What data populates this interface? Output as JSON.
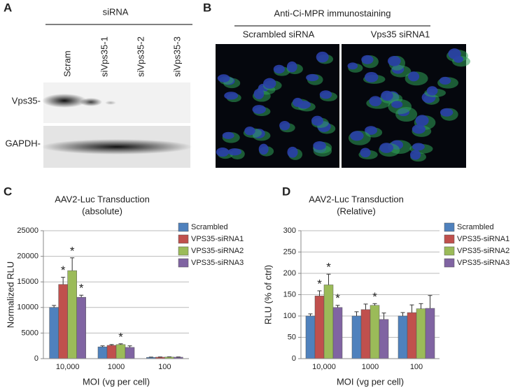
{
  "panel_a": {
    "label": "A",
    "header": "siRNA",
    "lanes": [
      "Scram",
      "siVps35-1",
      "siVps35-2",
      "siVps35-3"
    ],
    "rows": [
      "Vps35-",
      "GAPDH-"
    ]
  },
  "panel_b": {
    "label": "B",
    "title": "Anti-Ci-MPR immunostaining",
    "columns": [
      "Scrambled siRNA",
      "Vps35 siRNA1"
    ]
  },
  "chart_data": [
    {
      "type": "bar",
      "label": "C",
      "title": "AAV2-Luc Transduction",
      "subtitle": "(absolute)",
      "y_label": "Normalized RLU",
      "x_label": "MOI (vg per cell)",
      "categories": [
        "10,000",
        "1000",
        "100"
      ],
      "ylim": [
        0,
        25000
      ],
      "yticks": [
        0,
        5000,
        10000,
        15000,
        20000,
        25000
      ],
      "grid": true,
      "series": [
        {
          "name": "Scrambled",
          "color": "#4f81bd",
          "values": [
            10000,
            2300,
            250
          ],
          "errors": [
            400,
            200,
            50
          ],
          "marks": [
            null,
            null,
            null
          ]
        },
        {
          "name": "VPS35-siRNA1",
          "color": "#c0504d",
          "values": [
            14500,
            2600,
            280
          ],
          "errors": [
            1400,
            150,
            50
          ],
          "marks": [
            "*",
            null,
            null
          ]
        },
        {
          "name": "VPS35-siRNA2",
          "color": "#9bbb59",
          "values": [
            17200,
            2750,
            300
          ],
          "errors": [
            2500,
            150,
            50
          ],
          "marks": [
            "*",
            "*",
            null
          ]
        },
        {
          "name": "VPS35-siRNA3",
          "color": "#8064a2",
          "values": [
            12000,
            2200,
            280
          ],
          "errors": [
            400,
            300,
            50
          ],
          "marks": [
            "*",
            null,
            null
          ]
        }
      ]
    },
    {
      "type": "bar",
      "label": "D",
      "title": "AAV2-Luc Transduction",
      "subtitle": "(Relative)",
      "y_label": "RLU (% of ctrl)",
      "x_label": "MOI (vg per cell)",
      "categories": [
        "10,000",
        "1000",
        "100"
      ],
      "ylim": [
        0,
        300
      ],
      "yticks": [
        0,
        50,
        100,
        150,
        200,
        250,
        300
      ],
      "grid": true,
      "series": [
        {
          "name": "Scrambled",
          "color": "#4f81bd",
          "values": [
            100,
            100,
            100
          ],
          "errors": [
            5,
            10,
            8
          ],
          "marks": [
            null,
            null,
            null
          ]
        },
        {
          "name": "VPS35-siRNA1",
          "color": "#c0504d",
          "values": [
            147,
            115,
            108
          ],
          "errors": [
            12,
            13,
            18
          ],
          "marks": [
            "*",
            null,
            null
          ]
        },
        {
          "name": "VPS35-siRNA2",
          "color": "#9bbb59",
          "values": [
            173,
            125,
            117
          ],
          "errors": [
            25,
            4,
            12
          ],
          "marks": [
            "*",
            "*",
            null
          ]
        },
        {
          "name": "VPS35-siRNA3",
          "color": "#8064a2",
          "values": [
            120,
            92,
            118
          ],
          "errors": [
            5,
            15,
            30
          ],
          "marks": [
            "*",
            null,
            null
          ]
        }
      ]
    }
  ]
}
